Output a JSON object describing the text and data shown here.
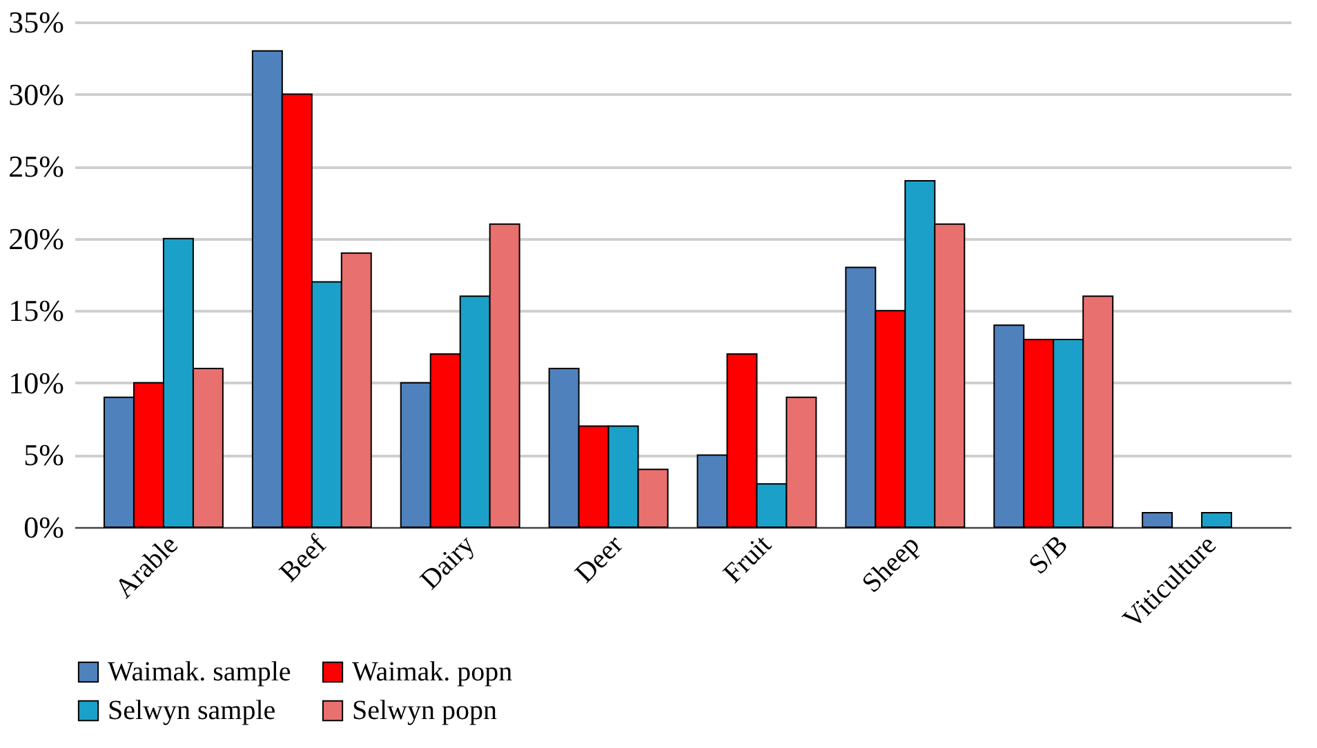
{
  "chart_data": {
    "type": "bar",
    "categories": [
      "Arable",
      "Beef",
      "Dairy",
      "Deer",
      "Fruit",
      "Sheep",
      "S/B",
      "Viticulture"
    ],
    "series": [
      {
        "name": "Waimak. sample",
        "color": "#4f81bd",
        "values": [
          9,
          33,
          10,
          11,
          5,
          18,
          14,
          1
        ]
      },
      {
        "name": "Waimak. popn",
        "color": "#ff0000",
        "values": [
          10,
          30,
          12,
          7,
          12,
          15,
          13,
          0
        ]
      },
      {
        "name": "Selwyn sample",
        "color": "#1ba1c9",
        "values": [
          20,
          17,
          16,
          7,
          3,
          24,
          13,
          1
        ]
      },
      {
        "name": "Selwyn popn",
        "color": "#e8706e",
        "values": [
          11,
          19,
          21,
          4,
          9,
          21,
          16,
          0
        ]
      }
    ],
    "ylim": [
      0,
      35
    ],
    "yticks": [
      {
        "value": 0,
        "label": "0%"
      },
      {
        "value": 5,
        "label": "5%"
      },
      {
        "value": 10,
        "label": "10%"
      },
      {
        "value": 15,
        "label": "15%"
      },
      {
        "value": 20,
        "label": "20%"
      },
      {
        "value": 25,
        "label": "25%"
      },
      {
        "value": 30,
        "label": "30%"
      },
      {
        "value": 35,
        "label": "35%"
      }
    ],
    "grid": "y",
    "legend": "bottom"
  }
}
